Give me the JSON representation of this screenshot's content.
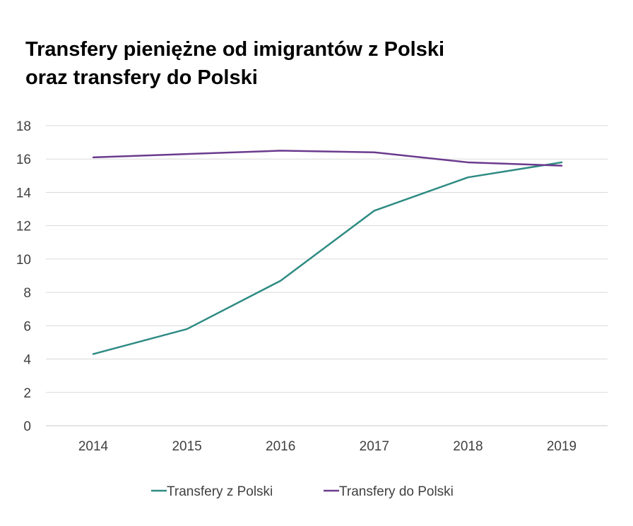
{
  "chart_data": {
    "type": "line",
    "title_lines": [
      "Transfery pieniężne od imigrantów z Polski",
      "oraz transfery do Polski"
    ],
    "categories": [
      "2014",
      "2015",
      "2016",
      "2017",
      "2018",
      "2019"
    ],
    "y_ticks": [
      "0",
      "2",
      "4",
      "6",
      "8",
      "10",
      "12",
      "14",
      "16",
      "18"
    ],
    "ylim": [
      0,
      18
    ],
    "grid": true,
    "legend_position": "bottom",
    "series": [
      {
        "name": "Transfery z Polski",
        "color": "#2e8b83",
        "values": [
          4.3,
          5.8,
          8.7,
          12.9,
          14.9,
          15.8
        ]
      },
      {
        "name": "Transfery do Polski",
        "color": "#6b3a8e",
        "values": [
          16.1,
          16.3,
          16.5,
          16.4,
          15.8,
          15.6
        ]
      }
    ]
  }
}
